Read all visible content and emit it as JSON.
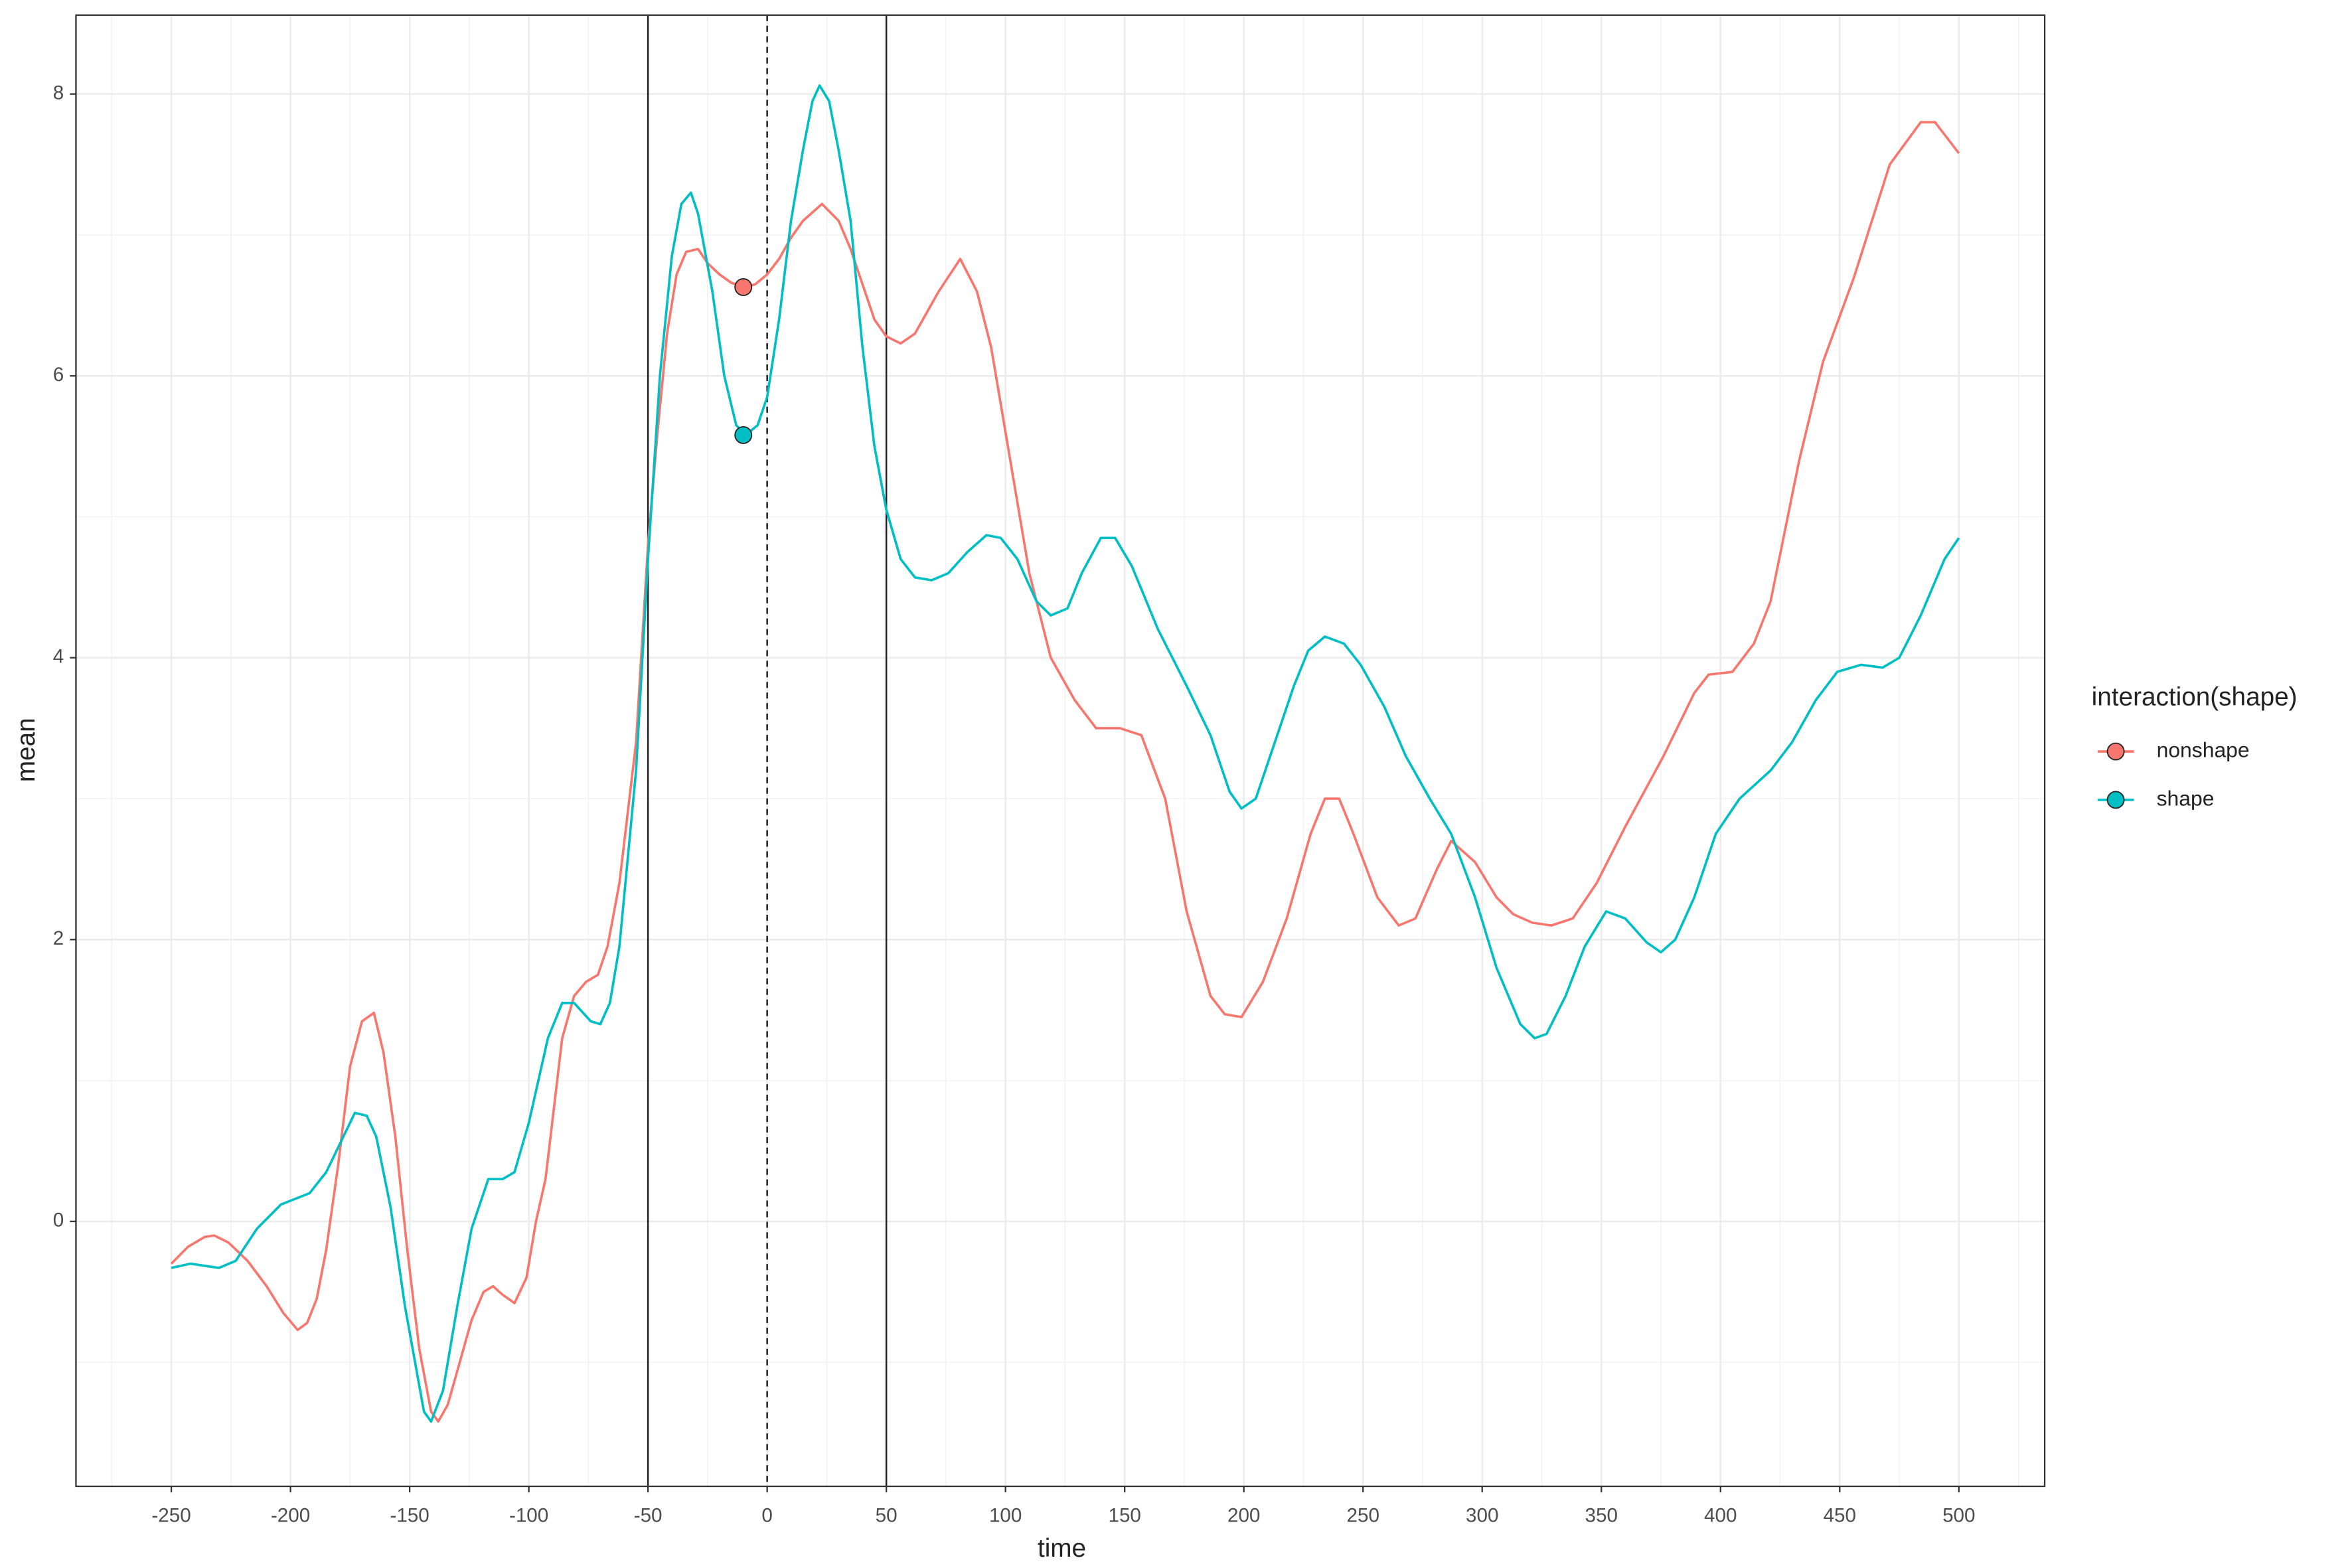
{
  "chart_data": {
    "type": "line",
    "x_label": "time",
    "y_label": "mean",
    "legend_title": "interaction(shape)",
    "legend_position": "right",
    "grid": true,
    "xlim": [
      -290,
      536
    ],
    "ylim": [
      -1.88,
      8.56
    ],
    "xticks": [
      -250,
      -200,
      -150,
      -100,
      -50,
      0,
      50,
      100,
      150,
      200,
      250,
      300,
      350,
      400,
      450,
      500
    ],
    "xticks_minor": [
      -275,
      -225,
      -175,
      -125,
      -75,
      -25,
      25,
      75,
      125,
      175,
      225,
      275,
      325,
      375,
      425,
      475,
      525
    ],
    "yticks": [
      0,
      2,
      4,
      6,
      8
    ],
    "yticks_minor": [
      -1,
      1,
      3,
      5,
      7
    ],
    "vlines": [
      {
        "x": -50,
        "dashed": false
      },
      {
        "x": 0,
        "dashed": true
      },
      {
        "x": 50,
        "dashed": false
      }
    ],
    "series": [
      {
        "name": "nonshape",
        "color": "#f8766d",
        "marker": {
          "x": -10,
          "y": 6.63
        },
        "x": [
          -250,
          -243,
          -236,
          -232,
          -226,
          -218,
          -210,
          -203,
          -197,
          -193,
          -189,
          -185,
          -180,
          -175,
          -170,
          -165,
          -161,
          -156,
          -151,
          -146,
          -141,
          -138,
          -134,
          -129,
          -124,
          -119,
          -115,
          -111,
          -106,
          -101,
          -97,
          -93,
          -86,
          -81,
          -76,
          -71,
          -67,
          -62,
          -55,
          -50,
          -46,
          -42,
          -38,
          -34,
          -29,
          -25,
          -20,
          -15,
          -9,
          -5,
          0,
          5,
          10,
          15,
          23,
          30,
          35,
          40,
          45,
          50,
          56,
          62,
          72,
          81,
          88,
          94,
          102,
          110,
          119,
          129,
          138,
          148,
          157,
          167,
          176,
          186,
          192,
          199,
          208,
          218,
          228,
          234,
          240,
          246,
          256,
          265,
          272,
          281,
          287,
          297,
          306,
          313,
          321,
          329,
          338,
          348,
          360,
          376,
          389,
          395,
          405,
          414,
          421,
          433,
          443,
          456,
          471,
          484,
          490,
          500
        ],
        "values": [
          -0.3,
          -0.18,
          -0.11,
          -0.1,
          -0.15,
          -0.28,
          -0.46,
          -0.65,
          -0.77,
          -0.72,
          -0.55,
          -0.2,
          0.4,
          1.1,
          1.42,
          1.48,
          1.2,
          0.6,
          -0.2,
          -0.9,
          -1.35,
          -1.42,
          -1.3,
          -1.0,
          -0.7,
          -0.5,
          -0.46,
          -0.52,
          -0.58,
          -0.4,
          0.0,
          0.3,
          1.3,
          1.6,
          1.7,
          1.75,
          1.95,
          2.4,
          3.4,
          4.8,
          5.6,
          6.3,
          6.72,
          6.88,
          6.9,
          6.8,
          6.72,
          6.66,
          6.63,
          6.65,
          6.72,
          6.83,
          6.98,
          7.1,
          7.22,
          7.1,
          6.9,
          6.65,
          6.4,
          6.28,
          6.23,
          6.3,
          6.6,
          6.83,
          6.6,
          6.2,
          5.4,
          4.6,
          4.0,
          3.7,
          3.5,
          3.5,
          3.45,
          3.0,
          2.2,
          1.6,
          1.47,
          1.45,
          1.7,
          2.15,
          2.75,
          3.0,
          3.0,
          2.75,
          2.3,
          2.1,
          2.15,
          2.5,
          2.7,
          2.55,
          2.3,
          2.18,
          2.12,
          2.1,
          2.15,
          2.4,
          2.8,
          3.3,
          3.75,
          3.88,
          3.9,
          4.1,
          4.4,
          5.4,
          6.1,
          6.7,
          7.5,
          7.8,
          7.8,
          7.58
        ]
      },
      {
        "name": "shape",
        "color": "#00bfc4",
        "marker": {
          "x": -10,
          "y": 5.58
        },
        "x": [
          -250,
          -242,
          -230,
          -223,
          -214,
          -204,
          -192,
          -185,
          -173,
          -168,
          -164,
          -158,
          -152,
          -144,
          -141,
          -136,
          -130,
          -124,
          -117,
          -111,
          -106,
          -100,
          -92,
          -86,
          -81,
          -74,
          -70,
          -66,
          -62,
          -55,
          -50,
          -45,
          -40,
          -36,
          -32,
          -29,
          -23,
          -18,
          -13,
          -9,
          -4,
          0,
          5,
          10,
          15,
          19,
          22,
          26,
          30,
          35,
          40,
          45,
          50,
          56,
          62,
          69,
          76,
          84,
          92,
          98,
          105,
          113,
          119,
          126,
          132,
          140,
          146,
          153,
          164,
          176,
          186,
          194,
          199,
          205,
          211,
          221,
          227,
          234,
          242,
          249,
          259,
          268,
          278,
          287,
          297,
          306,
          316,
          322,
          327,
          335,
          343,
          352,
          360,
          369,
          375,
          381,
          389,
          398,
          408,
          421,
          430,
          440,
          449,
          459,
          468,
          475,
          484,
          494,
          500
        ],
        "values": [
          -0.33,
          -0.3,
          -0.33,
          -0.28,
          -0.05,
          0.12,
          0.2,
          0.35,
          0.77,
          0.75,
          0.6,
          0.1,
          -0.6,
          -1.35,
          -1.42,
          -1.2,
          -0.6,
          -0.05,
          0.3,
          0.3,
          0.35,
          0.7,
          1.3,
          1.55,
          1.55,
          1.42,
          1.4,
          1.55,
          1.95,
          3.2,
          4.7,
          6.0,
          6.85,
          7.22,
          7.3,
          7.15,
          6.6,
          6.0,
          5.65,
          5.58,
          5.65,
          5.85,
          6.4,
          7.1,
          7.6,
          7.95,
          8.06,
          7.95,
          7.6,
          7.1,
          6.2,
          5.5,
          5.05,
          4.7,
          4.57,
          4.55,
          4.6,
          4.75,
          4.87,
          4.85,
          4.7,
          4.4,
          4.3,
          4.35,
          4.6,
          4.85,
          4.85,
          4.65,
          4.2,
          3.8,
          3.45,
          3.05,
          2.93,
          3.0,
          3.3,
          3.8,
          4.05,
          4.15,
          4.1,
          3.95,
          3.65,
          3.3,
          3.0,
          2.75,
          2.3,
          1.8,
          1.4,
          1.3,
          1.33,
          1.6,
          1.95,
          2.2,
          2.15,
          1.98,
          1.91,
          2.0,
          2.3,
          2.75,
          3.0,
          3.2,
          3.4,
          3.7,
          3.9,
          3.95,
          3.93,
          4.0,
          4.3,
          4.7,
          4.85
        ]
      }
    ]
  }
}
